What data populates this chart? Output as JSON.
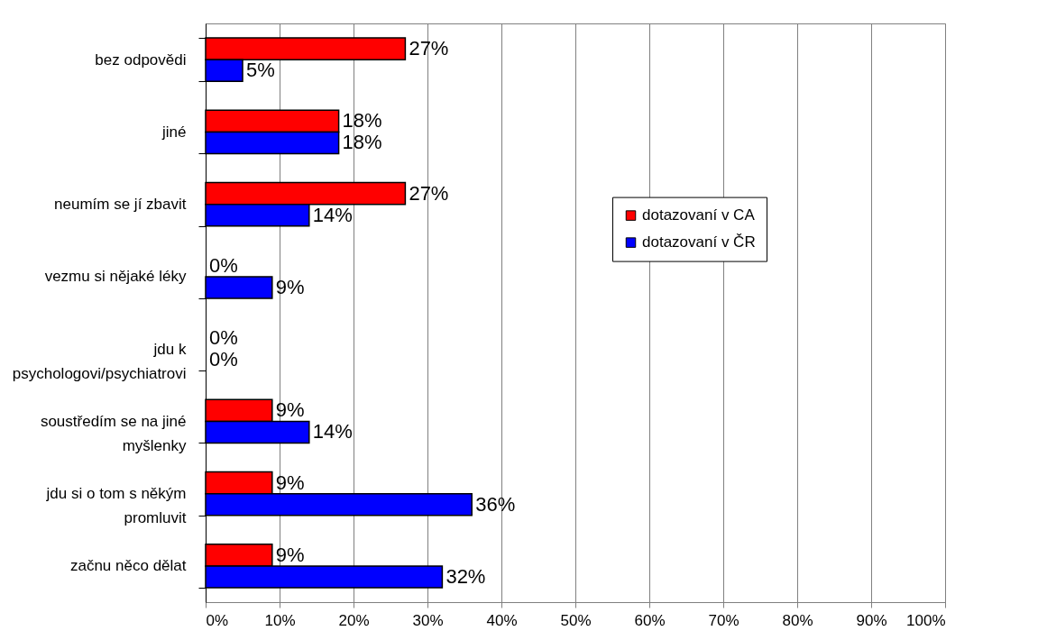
{
  "chart_data": {
    "type": "bar",
    "orientation": "horizontal",
    "categories": [
      "bez odpovědi",
      "jiné",
      "neumím se jí zbavit",
      "vezmu si nějaké léky",
      "jdu k psychologovi/psychiatrovi",
      "soustředím se na jiné myšlenky",
      "jdu si o tom s někým promluvit",
      "začnu něco dělat"
    ],
    "series": [
      {
        "name": "dotazovaní v CA",
        "color": "#ff0000",
        "values": [
          27,
          18,
          27,
          0,
          0,
          9,
          9,
          9
        ],
        "value_labels": [
          "27%",
          "18%",
          "27%",
          "0%",
          "0%",
          "9%",
          "9%",
          "9%"
        ]
      },
      {
        "name": "dotazovaní v ČR",
        "color": "#0000ff",
        "values": [
          5,
          18,
          14,
          9,
          0,
          14,
          36,
          32
        ],
        "value_labels": [
          "5%",
          "18%",
          "14%",
          "9%",
          "0%",
          "14%",
          "36%",
          "32%"
        ]
      }
    ],
    "xlim": [
      0,
      100
    ],
    "xticks": [
      {
        "value": 0,
        "label": "0%"
      },
      {
        "value": 10,
        "label": "10%"
      },
      {
        "value": 20,
        "label": "20%"
      },
      {
        "value": 30,
        "label": "30%"
      },
      {
        "value": 40,
        "label": "40%"
      },
      {
        "value": 50,
        "label": "50%"
      },
      {
        "value": 60,
        "label": "60%"
      },
      {
        "value": 70,
        "label": "70%"
      },
      {
        "value": 80,
        "label": "80%"
      },
      {
        "value": 90,
        "label": "90%"
      },
      {
        "value": 100,
        "label": "100%"
      }
    ],
    "grid": "x",
    "legend": "right"
  }
}
